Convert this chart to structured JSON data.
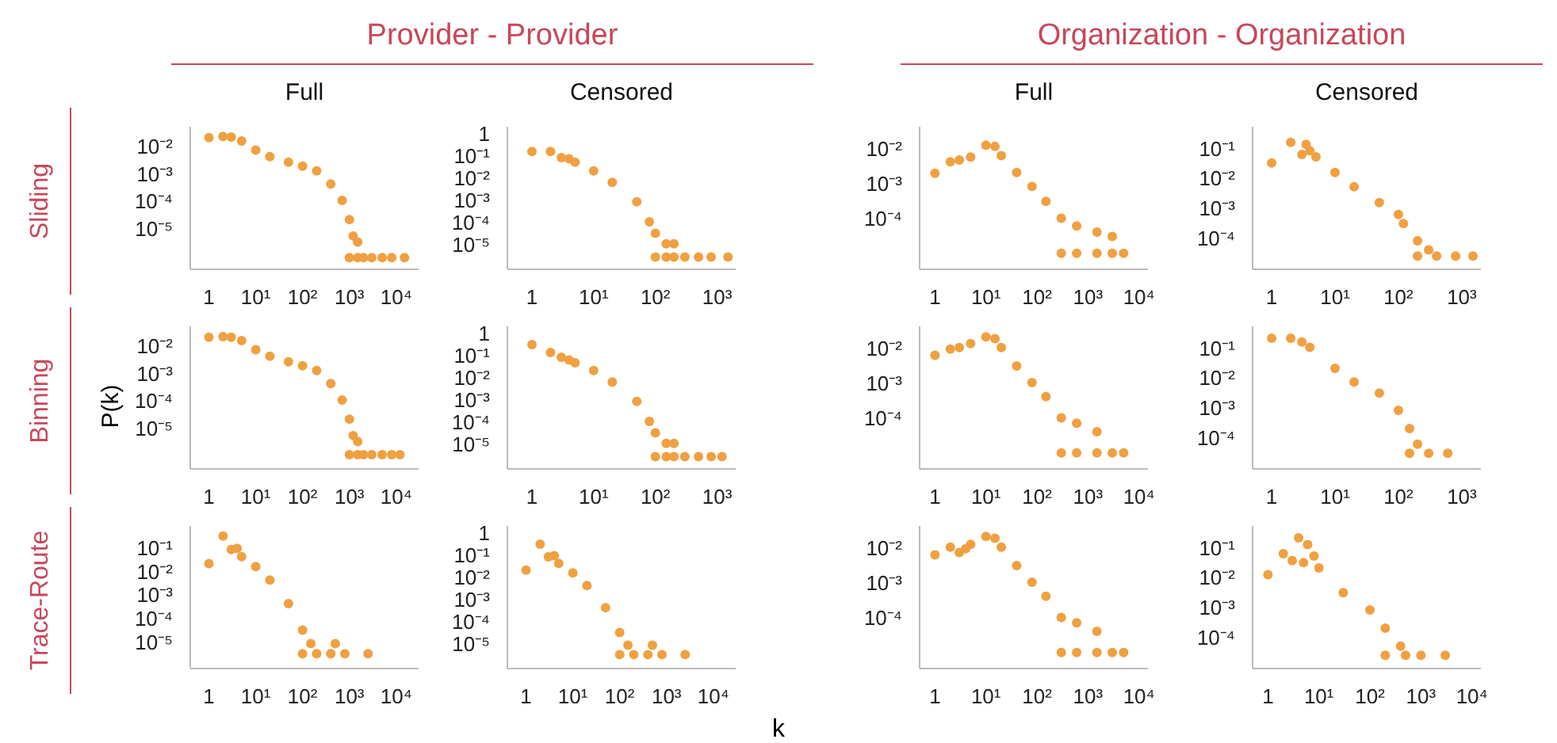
{
  "chart_data": [
    {
      "type": "scatter",
      "log": "xy",
      "title": "Full",
      "annotations": [
        "Provider - Provider",
        "Sliding"
      ],
      "x": [
        1,
        2,
        3,
        5,
        10,
        20,
        50,
        100,
        200,
        400,
        700,
        1000,
        1200,
        1500,
        1000,
        1500,
        2000,
        3000,
        5000,
        8000,
        15000
      ],
      "values": [
        0.02,
        0.022,
        0.021,
        0.015,
        0.007,
        0.004,
        0.0025,
        0.0018,
        0.0012,
        0.0004,
        0.0001,
        2e-05,
        5e-06,
        3e-06,
        8e-07,
        8e-07,
        8e-07,
        8e-07,
        8e-07,
        8e-07,
        8e-07
      ],
      "color": "#f0a040",
      "marker": "circle",
      "xlim": [
        0.4,
        30000
      ],
      "ylim": [
        3e-07,
        0.05
      ],
      "xticks": [
        {
          "value": 1,
          "label": "1"
        },
        {
          "value": 10,
          "label": "10¹"
        },
        {
          "value": 100,
          "label": "10²"
        },
        {
          "value": 1000,
          "label": "10³"
        },
        {
          "value": 10000,
          "label": "10⁴"
        }
      ],
      "yticks": [
        {
          "value": 0.01,
          "label": "10⁻²"
        },
        {
          "value": 0.001,
          "label": "10⁻³"
        },
        {
          "value": 0.0001,
          "label": "10⁻⁴"
        },
        {
          "value": 1e-05,
          "label": "10⁻⁵"
        }
      ]
    },
    {
      "type": "scatter",
      "log": "xy",
      "title": "Censored",
      "x": [
        1,
        2,
        3,
        4,
        5,
        10,
        20,
        50,
        80,
        100,
        150,
        200,
        100,
        150,
        200,
        300,
        500,
        800,
        1500
      ],
      "values": [
        0.15,
        0.15,
        0.08,
        0.07,
        0.05,
        0.02,
        0.006,
        0.0008,
        0.0001,
        3e-05,
        1e-05,
        1e-05,
        2.5e-06,
        2.5e-06,
        2.5e-06,
        2.5e-06,
        2.5e-06,
        2.5e-06,
        2.5e-06
      ],
      "color": "#f0a040",
      "marker": "circle",
      "xlim": [
        0.4,
        2000
      ],
      "ylim": [
        7e-07,
        2
      ],
      "xticks": [
        {
          "value": 1,
          "label": "1"
        },
        {
          "value": 10,
          "label": "10¹"
        },
        {
          "value": 100,
          "label": "10²"
        },
        {
          "value": 1000,
          "label": "10³"
        }
      ],
      "yticks": [
        {
          "value": 1,
          "label": "1"
        },
        {
          "value": 0.1,
          "label": "10⁻¹"
        },
        {
          "value": 0.01,
          "label": "10⁻²"
        },
        {
          "value": 0.001,
          "label": "10⁻³"
        },
        {
          "value": 0.0001,
          "label": "10⁻⁴"
        },
        {
          "value": 1e-05,
          "label": "10⁻⁵"
        }
      ]
    },
    {
      "type": "scatter",
      "log": "xy",
      "title": "Full",
      "annotations": [
        "Organization - Organization"
      ],
      "x": [
        1,
        2,
        3,
        5,
        10,
        15,
        20,
        40,
        80,
        150,
        300,
        600,
        1500,
        3000,
        300,
        600,
        1500,
        3000,
        5000
      ],
      "values": [
        0.0019,
        0.004,
        0.0045,
        0.0055,
        0.012,
        0.011,
        0.006,
        0.002,
        0.0008,
        0.0003,
        0.0001,
        6e-05,
        4e-05,
        3e-05,
        1e-05,
        1e-05,
        1e-05,
        1e-05,
        1e-05
      ],
      "color": "#f0a040",
      "marker": "circle",
      "xlim": [
        0.5,
        15000
      ],
      "ylim": [
        3.5e-06,
        0.04
      ],
      "xticks": [
        {
          "value": 1,
          "label": "1"
        },
        {
          "value": 10,
          "label": "10¹"
        },
        {
          "value": 100,
          "label": "10²"
        },
        {
          "value": 1000,
          "label": "10³"
        },
        {
          "value": 10000,
          "label": "10⁴"
        }
      ],
      "yticks": [
        {
          "value": 0.01,
          "label": "10⁻²"
        },
        {
          "value": 0.001,
          "label": "10⁻³"
        },
        {
          "value": 0.0001,
          "label": "10⁻⁴"
        }
      ]
    },
    {
      "type": "scatter",
      "log": "xy",
      "title": "Censored",
      "x": [
        1,
        2,
        3,
        3.5,
        4,
        5,
        10,
        20,
        50,
        100,
        120,
        200,
        300,
        200,
        400,
        800,
        1500
      ],
      "values": [
        0.031,
        0.15,
        0.06,
        0.13,
        0.08,
        0.05,
        0.015,
        0.005,
        0.0015,
        0.0006,
        0.0003,
        8e-05,
        4e-05,
        2.5e-05,
        2.5e-05,
        2.5e-05,
        2.5e-05
      ],
      "color": "#f0a040",
      "marker": "circle",
      "xlim": [
        0.5,
        2000
      ],
      "ylim": [
        9e-06,
        0.5
      ],
      "xticks": [
        {
          "value": 1,
          "label": "1"
        },
        {
          "value": 10,
          "label": "10¹"
        },
        {
          "value": 100,
          "label": "10²"
        },
        {
          "value": 1000,
          "label": "10³"
        }
      ],
      "yticks": [
        {
          "value": 0.1,
          "label": "10⁻¹"
        },
        {
          "value": 0.01,
          "label": "10⁻²"
        },
        {
          "value": 0.001,
          "label": "10⁻³"
        },
        {
          "value": 0.0001,
          "label": "10⁻⁴"
        }
      ]
    },
    {
      "type": "scatter",
      "log": "xy",
      "annotations": [
        "Binning"
      ],
      "ylabel": "P(k)",
      "x": [
        1,
        2,
        3,
        5,
        10,
        20,
        50,
        100,
        200,
        400,
        700,
        1000,
        1200,
        1500,
        1000,
        1500,
        2000,
        3000,
        5000,
        8000,
        12000
      ],
      "values": [
        0.02,
        0.021,
        0.02,
        0.015,
        0.007,
        0.004,
        0.0025,
        0.0018,
        0.0012,
        0.0004,
        0.0001,
        2e-05,
        5e-06,
        3e-06,
        1e-06,
        1e-06,
        1e-06,
        1e-06,
        1e-06,
        1e-06,
        1e-06
      ],
      "color": "#f0a040",
      "marker": "circle",
      "xlim": [
        0.4,
        30000
      ],
      "ylim": [
        3e-07,
        0.05
      ],
      "xticks": [
        {
          "value": 1,
          "label": "1"
        },
        {
          "value": 10,
          "label": "10¹"
        },
        {
          "value": 100,
          "label": "10²"
        },
        {
          "value": 1000,
          "label": "10³"
        },
        {
          "value": 10000,
          "label": "10⁴"
        }
      ],
      "yticks": [
        {
          "value": 0.01,
          "label": "10⁻²"
        },
        {
          "value": 0.001,
          "label": "10⁻³"
        },
        {
          "value": 0.0001,
          "label": "10⁻⁴"
        },
        {
          "value": 1e-05,
          "label": "10⁻⁵"
        }
      ]
    },
    {
      "type": "scatter",
      "log": "xy",
      "x": [
        1,
        2,
        3,
        4,
        5,
        10,
        20,
        50,
        80,
        100,
        150,
        200,
        100,
        150,
        200,
        300,
        500,
        800,
        1200
      ],
      "values": [
        0.3,
        0.13,
        0.08,
        0.06,
        0.045,
        0.02,
        0.006,
        0.0008,
        0.0001,
        3e-05,
        1e-05,
        1e-05,
        2.5e-06,
        2.5e-06,
        2.5e-06,
        2.5e-06,
        2.5e-06,
        2.5e-06,
        2.5e-06
      ],
      "color": "#f0a040",
      "marker": "circle",
      "xlim": [
        0.4,
        2000
      ],
      "ylim": [
        7e-07,
        2
      ],
      "xticks": [
        {
          "value": 1,
          "label": "1"
        },
        {
          "value": 10,
          "label": "10¹"
        },
        {
          "value": 100,
          "label": "10²"
        },
        {
          "value": 1000,
          "label": "10³"
        }
      ],
      "yticks": [
        {
          "value": 1,
          "label": "1"
        },
        {
          "value": 0.1,
          "label": "10⁻¹"
        },
        {
          "value": 0.01,
          "label": "10⁻²"
        },
        {
          "value": 0.001,
          "label": "10⁻³"
        },
        {
          "value": 0.0001,
          "label": "10⁻⁴"
        },
        {
          "value": 1e-05,
          "label": "10⁻⁵"
        }
      ]
    },
    {
      "type": "scatter",
      "log": "xy",
      "x": [
        1,
        2,
        3,
        5,
        10,
        15,
        20,
        40,
        80,
        150,
        300,
        600,
        1500,
        300,
        600,
        1500,
        3000,
        5000
      ],
      "values": [
        0.006,
        0.009,
        0.01,
        0.013,
        0.02,
        0.018,
        0.01,
        0.003,
        0.001,
        0.0004,
        0.0001,
        7e-05,
        4e-05,
        1e-05,
        1e-05,
        1e-05,
        1e-05,
        1e-05
      ],
      "color": "#f0a040",
      "marker": "circle",
      "xlim": [
        0.5,
        15000
      ],
      "ylim": [
        3.5e-06,
        0.04
      ],
      "xticks": [
        {
          "value": 1,
          "label": "1"
        },
        {
          "value": 10,
          "label": "10¹"
        },
        {
          "value": 100,
          "label": "10²"
        },
        {
          "value": 1000,
          "label": "10³"
        },
        {
          "value": 10000,
          "label": "10⁴"
        }
      ],
      "yticks": [
        {
          "value": 0.01,
          "label": "10⁻²"
        },
        {
          "value": 0.001,
          "label": "10⁻³"
        },
        {
          "value": 0.0001,
          "label": "10⁻⁴"
        }
      ]
    },
    {
      "type": "scatter",
      "log": "xy",
      "x": [
        1,
        2,
        3,
        4,
        10,
        20,
        50,
        100,
        150,
        200,
        150,
        300,
        600
      ],
      "values": [
        0.2,
        0.2,
        0.15,
        0.1,
        0.02,
        0.007,
        0.003,
        0.0008,
        0.0002,
        6e-05,
        3e-05,
        3e-05,
        3e-05
      ],
      "color": "#f0a040",
      "marker": "circle",
      "xlim": [
        0.5,
        2000
      ],
      "ylim": [
        9e-06,
        0.5
      ],
      "xticks": [
        {
          "value": 1,
          "label": "1"
        },
        {
          "value": 10,
          "label": "10¹"
        },
        {
          "value": 100,
          "label": "10²"
        },
        {
          "value": 1000,
          "label": "10³"
        }
      ],
      "yticks": [
        {
          "value": 0.1,
          "label": "10⁻¹"
        },
        {
          "value": 0.01,
          "label": "10⁻²"
        },
        {
          "value": 0.001,
          "label": "10⁻³"
        },
        {
          "value": 0.0001,
          "label": "10⁻⁴"
        }
      ]
    },
    {
      "type": "scatter",
      "log": "xy",
      "annotations": [
        "Trace-Route"
      ],
      "x": [
        1,
        2,
        3,
        4,
        5,
        10,
        20,
        50,
        100,
        150,
        500,
        100,
        200,
        400,
        800,
        2500
      ],
      "values": [
        0.02,
        0.3,
        0.08,
        0.09,
        0.04,
        0.015,
        0.004,
        0.0004,
        3e-05,
        8e-06,
        8e-06,
        3e-06,
        3e-06,
        3e-06,
        3e-06,
        3e-06
      ],
      "color": "#f0a040",
      "marker": "circle",
      "xlim": [
        0.4,
        30000
      ],
      "ylim": [
        7e-07,
        0.8
      ],
      "xticks": [
        {
          "value": 1,
          "label": "1"
        },
        {
          "value": 10,
          "label": "10¹"
        },
        {
          "value": 100,
          "label": "10²"
        },
        {
          "value": 1000,
          "label": "10³"
        },
        {
          "value": 10000,
          "label": "10⁴"
        }
      ],
      "yticks": [
        {
          "value": 0.1,
          "label": "10⁻¹"
        },
        {
          "value": 0.01,
          "label": "10⁻²"
        },
        {
          "value": 0.001,
          "label": "10⁻³"
        },
        {
          "value": 0.0001,
          "label": "10⁻⁴"
        },
        {
          "value": 1e-05,
          "label": "10⁻⁵"
        }
      ]
    },
    {
      "type": "scatter",
      "log": "xy",
      "x": [
        1,
        2,
        3,
        4,
        5,
        10,
        20,
        50,
        100,
        150,
        500,
        100,
        200,
        400,
        800,
        2500
      ],
      "values": [
        0.02,
        0.3,
        0.08,
        0.09,
        0.04,
        0.015,
        0.004,
        0.0004,
        3e-05,
        8e-06,
        8e-06,
        3e-06,
        3e-06,
        3e-06,
        3e-06,
        3e-06
      ],
      "color": "#f0a040",
      "marker": "circle",
      "xlim": [
        0.4,
        30000
      ],
      "ylim": [
        7e-07,
        2
      ],
      "xticks": [
        {
          "value": 1,
          "label": "1"
        },
        {
          "value": 10,
          "label": "10¹"
        },
        {
          "value": 100,
          "label": "10²"
        },
        {
          "value": 1000,
          "label": "10³"
        },
        {
          "value": 10000,
          "label": "10⁴"
        }
      ],
      "yticks": [
        {
          "value": 1,
          "label": "1"
        },
        {
          "value": 0.1,
          "label": "10⁻¹"
        },
        {
          "value": 0.01,
          "label": "10⁻²"
        },
        {
          "value": 0.001,
          "label": "10⁻³"
        },
        {
          "value": 0.0001,
          "label": "10⁻⁴"
        },
        {
          "value": 1e-05,
          "label": "10⁻⁵"
        }
      ]
    },
    {
      "type": "scatter",
      "log": "xy",
      "xlabel": "k",
      "x": [
        1,
        2,
        3,
        4,
        5,
        10,
        15,
        20,
        40,
        80,
        150,
        300,
        600,
        1500,
        300,
        600,
        1500,
        3000,
        5000
      ],
      "values": [
        0.006,
        0.01,
        0.007,
        0.009,
        0.012,
        0.02,
        0.018,
        0.01,
        0.003,
        0.001,
        0.0004,
        0.0001,
        7e-05,
        4e-05,
        1e-05,
        1e-05,
        1e-05,
        1e-05,
        1e-05
      ],
      "color": "#f0a040",
      "marker": "circle",
      "xlim": [
        0.5,
        15000
      ],
      "ylim": [
        3.5e-06,
        0.04
      ],
      "xticks": [
        {
          "value": 1,
          "label": "1"
        },
        {
          "value": 10,
          "label": "10¹"
        },
        {
          "value": 100,
          "label": "10²"
        },
        {
          "value": 1000,
          "label": "10³"
        },
        {
          "value": 10000,
          "label": "10⁴"
        }
      ],
      "yticks": [
        {
          "value": 0.01,
          "label": "10⁻²"
        },
        {
          "value": 0.001,
          "label": "10⁻³"
        },
        {
          "value": 0.0001,
          "label": "10⁻⁴"
        }
      ]
    },
    {
      "type": "scatter",
      "log": "xy",
      "x": [
        1,
        2,
        3,
        4,
        5,
        6,
        8,
        10,
        30,
        100,
        200,
        400,
        200,
        500,
        1000,
        3000
      ],
      "values": [
        0.012,
        0.06,
        0.035,
        0.2,
        0.03,
        0.12,
        0.05,
        0.02,
        0.003,
        0.0008,
        0.0002,
        5e-05,
        2.5e-05,
        2.5e-05,
        2.5e-05,
        2.5e-05
      ],
      "color": "#f0a040",
      "marker": "circle",
      "xlim": [
        0.5,
        15000
      ],
      "ylim": [
        9e-06,
        0.5
      ],
      "xticks": [
        {
          "value": 1,
          "label": "1"
        },
        {
          "value": 10,
          "label": "10¹"
        },
        {
          "value": 100,
          "label": "10²"
        },
        {
          "value": 1000,
          "label": "10³"
        },
        {
          "value": 10000,
          "label": "10⁴"
        }
      ],
      "yticks": [
        {
          "value": 0.1,
          "label": "10⁻¹"
        },
        {
          "value": 0.01,
          "label": "10⁻²"
        },
        {
          "value": 0.001,
          "label": "10⁻³"
        },
        {
          "value": 0.0001,
          "label": "10⁻⁴"
        }
      ]
    }
  ]
}
